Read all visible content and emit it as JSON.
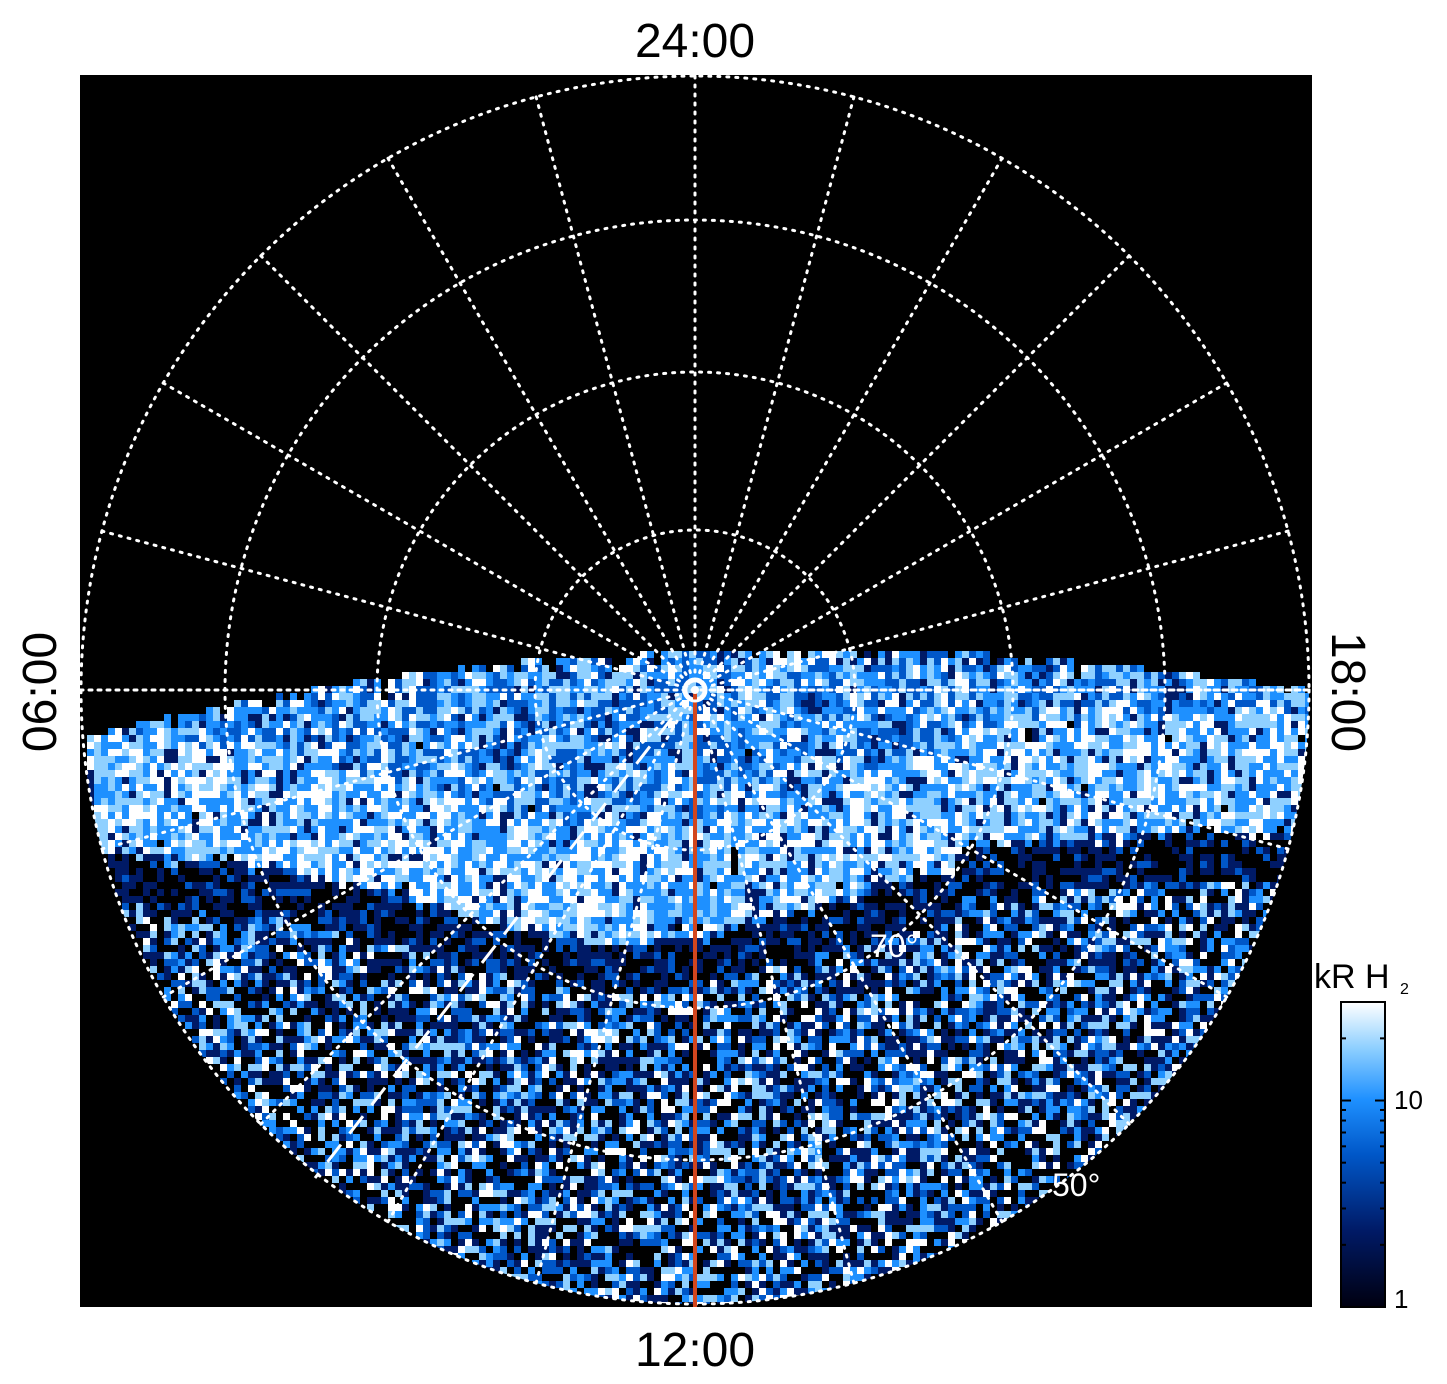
{
  "plot": {
    "local_time_labels": {
      "top": "24:00",
      "bottom": "12:00",
      "left": "06:00",
      "right": "18:00"
    },
    "latitude_labels": [
      {
        "text": "70°"
      },
      {
        "text": "50°"
      }
    ],
    "colorbar": {
      "unit_main": "kR H",
      "unit_sub": "2",
      "ticks": [
        {
          "text": "10",
          "value": 10
        },
        {
          "text": "1",
          "value": 1
        }
      ],
      "scale": "log",
      "range": [
        1,
        30
      ]
    },
    "colors": {
      "background": "#000000",
      "grid": "#ffffff",
      "meridian": "#d2461e",
      "colormap": [
        "#000010",
        "#001a66",
        "#0057c8",
        "#1e90ff",
        "#8fd0ff",
        "#ffffff"
      ]
    }
  }
}
